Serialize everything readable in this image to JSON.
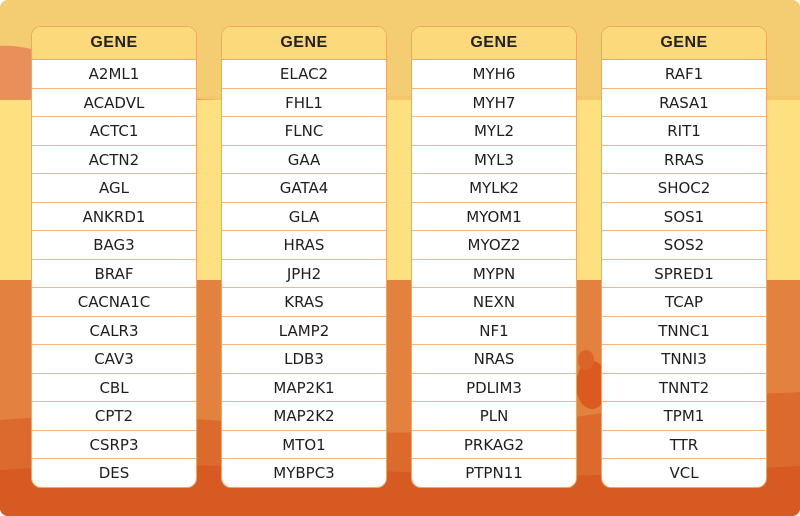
{
  "header_label": "GENE",
  "columns": [
    [
      "A2ML1",
      "ACADVL",
      "ACTC1",
      "ACTN2",
      "AGL",
      "ANKRD1",
      "BAG3",
      "BRAF",
      "CACNA1C",
      "CALR3",
      "CAV3",
      "CBL",
      "CPT2",
      "CSRP3",
      "DES"
    ],
    [
      "ELAC2",
      "FHL1",
      "FLNC",
      "GAA",
      "GATA4",
      "GLA",
      "HRAS",
      "JPH2",
      "KRAS",
      "LAMP2",
      "LDB3",
      "MAP2K1",
      "MAP2K2",
      "MTO1",
      "MYBPC3"
    ],
    [
      "MYH6",
      "MYH7",
      "MYL2",
      "MYL3",
      "MYLK2",
      "MYOM1",
      "MYOZ2",
      "MYPN",
      "NEXN",
      "NF1",
      "NRAS",
      "PDLIM3",
      "PLN",
      "PRKAG2",
      "PTPN11"
    ],
    [
      "RAF1",
      "RASA1",
      "RIT1",
      "RRAS",
      "SHOC2",
      "SOS1",
      "SOS2",
      "SPRED1",
      "TCAP",
      "TNNC1",
      "TNNI3",
      "TNNT2",
      "TPM1",
      "TTR",
      "VCL"
    ]
  ],
  "colors": {
    "header_fill": "#fcd97b",
    "border": "#f1a85c",
    "bg_top": "#f2c86a",
    "bg_band": "#fde07f",
    "bg_orange": "#e58442",
    "bg_dark_orange": "#d9581f"
  }
}
